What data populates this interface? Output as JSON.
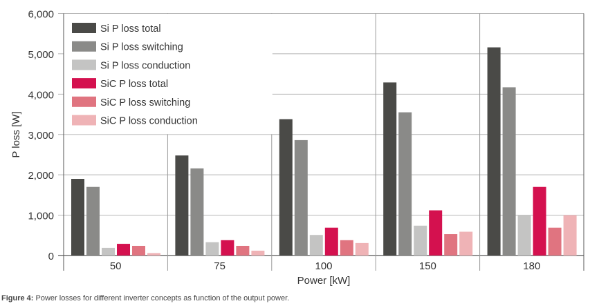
{
  "chart_data": {
    "type": "bar",
    "xlabel": "Power [kW]",
    "ylabel": "P loss [W]",
    "categories": [
      "50",
      "75",
      "100",
      "150",
      "180"
    ],
    "ylim": [
      0,
      6000
    ],
    "yticks": [
      "0",
      "1,000",
      "2,000",
      "3,000",
      "4,000",
      "5,000",
      "6,000"
    ],
    "grid": true,
    "legend_position": "top-left",
    "series": [
      {
        "name": "Si P loss total",
        "color": "#4a4a47",
        "values": [
          1900,
          2480,
          3380,
          4290,
          5160
        ]
      },
      {
        "name": "Si P loss switching",
        "color": "#8a8a88",
        "values": [
          1700,
          2160,
          2860,
          3550,
          4170
        ]
      },
      {
        "name": "Si P loss conduction",
        "color": "#c4c4c3",
        "values": [
          190,
          330,
          510,
          740,
          1000
        ]
      },
      {
        "name": "SiC P loss total",
        "color": "#d4114f",
        "values": [
          290,
          380,
          690,
          1120,
          1700
        ]
      },
      {
        "name": "SiC P loss switching",
        "color": "#e07480",
        "values": [
          240,
          240,
          380,
          530,
          690
        ]
      },
      {
        "name": "SiC P loss conduction",
        "color": "#efb3b6",
        "values": [
          60,
          120,
          310,
          590,
          1000
        ]
      }
    ]
  },
  "caption": {
    "label": "Figure 4:",
    "text": " Power losses for different inverter concepts as function of the output power."
  }
}
